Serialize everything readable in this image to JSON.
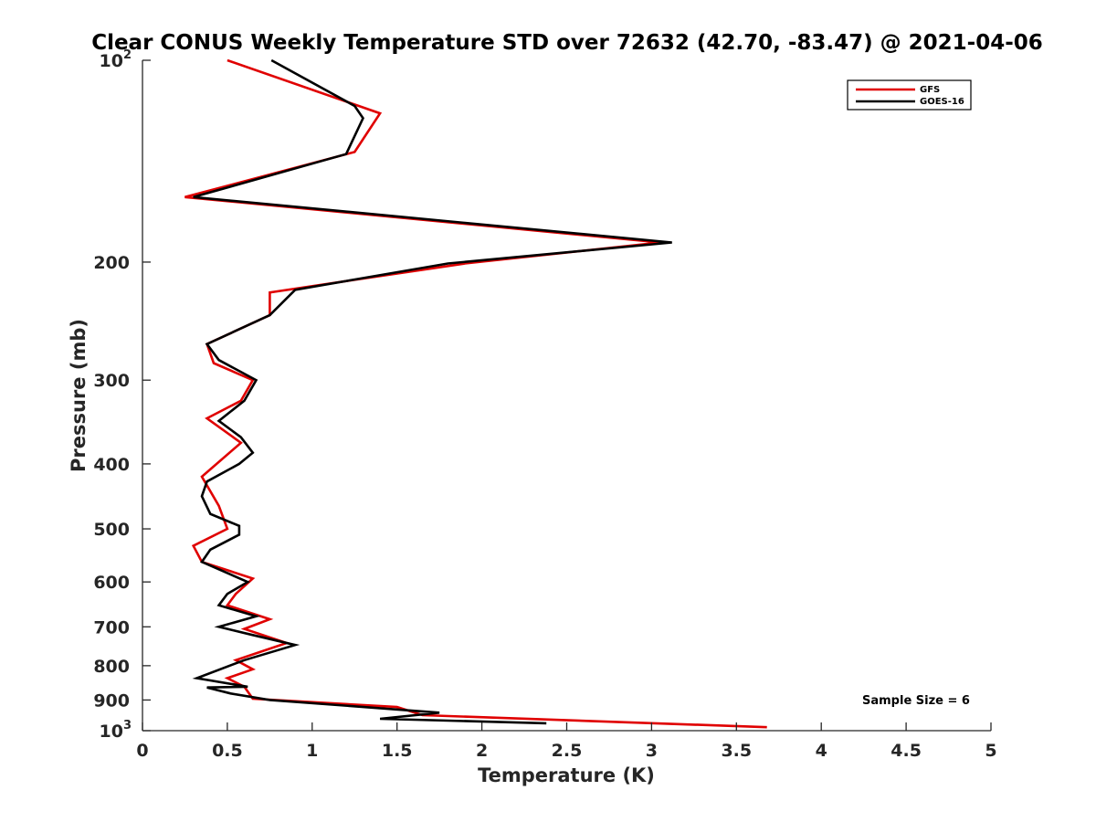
{
  "chart_data": {
    "type": "line",
    "title": "Clear CONUS Weekly Temperature STD over 72632 (42.70, -83.47) @ 2021-04-06",
    "xlabel": "Temperature (K)",
    "ylabel": "Pressure (mb)",
    "xlim": [
      0,
      5
    ],
    "ylim": [
      100,
      1000
    ],
    "y_scale": "log",
    "y_reversed": true,
    "grid": false,
    "legend_position": "top-right",
    "x_ticks": [
      "0",
      "0.5",
      "1",
      "1.5",
      "2",
      "2.5",
      "3",
      "3.5",
      "4",
      "4.5",
      "5"
    ],
    "y_ticks": [
      {
        "value": 100,
        "base": "10",
        "exp": "2"
      },
      {
        "value": 200,
        "label": "200"
      },
      {
        "value": 300,
        "label": "300"
      },
      {
        "value": 400,
        "label": "400"
      },
      {
        "value": 500,
        "label": "500"
      },
      {
        "value": 600,
        "label": "600"
      },
      {
        "value": 700,
        "label": "700"
      },
      {
        "value": 800,
        "label": "800"
      },
      {
        "value": 900,
        "label": "900"
      },
      {
        "value": 1000,
        "base": "10",
        "exp": "3"
      }
    ],
    "series": [
      {
        "name": "GFS",
        "color": "#e00000",
        "points": [
          [
            0.5,
            100
          ],
          [
            1.4,
            120
          ],
          [
            1.25,
            137
          ],
          [
            0.25,
            160
          ],
          [
            3.05,
            187
          ],
          [
            1.9,
            201
          ],
          [
            0.75,
            222
          ],
          [
            0.75,
            240
          ],
          [
            0.38,
            265
          ],
          [
            0.42,
            283
          ],
          [
            0.65,
            300
          ],
          [
            0.58,
            322
          ],
          [
            0.38,
            342
          ],
          [
            0.58,
            372
          ],
          [
            0.35,
            418
          ],
          [
            0.45,
            462
          ],
          [
            0.5,
            500
          ],
          [
            0.3,
            530
          ],
          [
            0.35,
            560
          ],
          [
            0.65,
            593
          ],
          [
            0.55,
            625
          ],
          [
            0.5,
            650
          ],
          [
            0.75,
            682
          ],
          [
            0.6,
            705
          ],
          [
            0.85,
            740
          ],
          [
            0.55,
            785
          ],
          [
            0.65,
            810
          ],
          [
            0.5,
            835
          ],
          [
            0.6,
            860
          ],
          [
            0.65,
            896
          ],
          [
            1.5,
            922
          ],
          [
            1.65,
            948
          ],
          [
            3.68,
            988
          ]
        ]
      },
      {
        "name": "GOES-16",
        "color": "#000000",
        "points": [
          [
            0.76,
            100
          ],
          [
            1.25,
            117
          ],
          [
            1.3,
            122
          ],
          [
            1.2,
            138
          ],
          [
            0.3,
            160
          ],
          [
            3.12,
            187
          ],
          [
            1.8,
            201
          ],
          [
            0.9,
            220
          ],
          [
            0.75,
            240
          ],
          [
            0.38,
            265
          ],
          [
            0.45,
            280
          ],
          [
            0.67,
            300
          ],
          [
            0.6,
            322
          ],
          [
            0.45,
            345
          ],
          [
            0.58,
            365
          ],
          [
            0.65,
            385
          ],
          [
            0.57,
            400
          ],
          [
            0.38,
            425
          ],
          [
            0.35,
            447
          ],
          [
            0.4,
            475
          ],
          [
            0.57,
            495
          ],
          [
            0.57,
            510
          ],
          [
            0.4,
            537
          ],
          [
            0.35,
            560
          ],
          [
            0.62,
            600
          ],
          [
            0.5,
            625
          ],
          [
            0.45,
            650
          ],
          [
            0.67,
            675
          ],
          [
            0.45,
            700
          ],
          [
            0.65,
            720
          ],
          [
            0.9,
            745
          ],
          [
            0.6,
            785
          ],
          [
            0.32,
            835
          ],
          [
            0.62,
            860
          ],
          [
            0.38,
            862
          ],
          [
            0.52,
            880
          ],
          [
            0.75,
            900
          ],
          [
            1.75,
            940
          ],
          [
            1.4,
            960
          ],
          [
            2.38,
            975
          ]
        ]
      }
    ],
    "annotations": [
      {
        "text": "Sample Size = 6"
      }
    ]
  }
}
